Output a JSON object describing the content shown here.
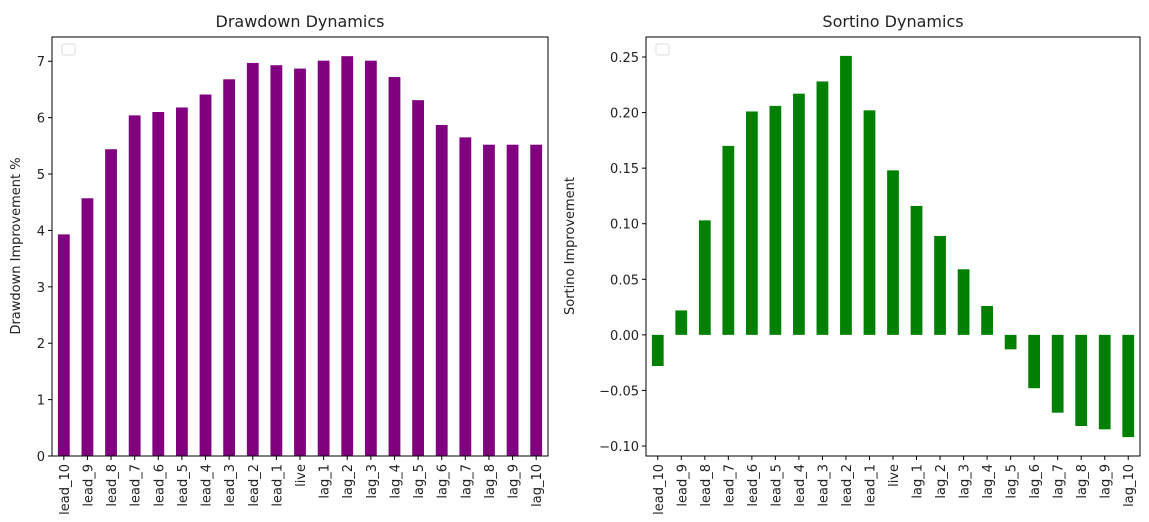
{
  "chart_data": [
    {
      "type": "bar",
      "title": "Drawdown Dynamics",
      "xlabel": "",
      "ylabel": "Drawdown Improvement %",
      "color": "#800080",
      "ylim": [
        0,
        7.43
      ],
      "yticks": [
        0,
        1,
        2,
        3,
        4,
        5,
        6,
        7
      ],
      "ytick_labels": [
        "0",
        "1",
        "2",
        "3",
        "4",
        "5",
        "6",
        "7"
      ],
      "legend": "top-left (empty)",
      "categories": [
        "lead_10",
        "lead_9",
        "lead_8",
        "lead_7",
        "lead_6",
        "lead_5",
        "lead_4",
        "lead_3",
        "lead_2",
        "lead_1",
        "live",
        "lag_1",
        "lag_2",
        "lag_3",
        "lag_4",
        "lag_5",
        "lag_6",
        "lag_7",
        "lag_8",
        "lag_9",
        "lag_10"
      ],
      "values": [
        3.93,
        4.57,
        5.44,
        6.04,
        6.1,
        6.18,
        6.41,
        6.68,
        6.97,
        6.93,
        6.87,
        7.01,
        7.09,
        7.01,
        6.72,
        6.31,
        5.87,
        5.65,
        5.52,
        5.52,
        5.52
      ]
    },
    {
      "type": "bar",
      "title": "Sortino Dynamics",
      "xlabel": "",
      "ylabel": "Sortino Improvement",
      "color": "#008000",
      "ylim": [
        -0.109,
        0.268
      ],
      "yticks": [
        -0.1,
        -0.05,
        0.0,
        0.05,
        0.1,
        0.15,
        0.2,
        0.25
      ],
      "ytick_labels": [
        "−0.10",
        "−0.05",
        "0.00",
        "0.05",
        "0.10",
        "0.15",
        "0.20",
        "0.25"
      ],
      "legend": "top-left (empty)",
      "categories": [
        "lead_10",
        "lead_9",
        "lead_8",
        "lead_7",
        "lead_6",
        "lead_5",
        "lead_4",
        "lead_3",
        "lead_2",
        "lead_1",
        "live",
        "lag_1",
        "lag_2",
        "lag_3",
        "lag_4",
        "lag_5",
        "lag_6",
        "lag_7",
        "lag_8",
        "lag_9",
        "lag_10"
      ],
      "values": [
        -0.028,
        0.022,
        0.103,
        0.17,
        0.201,
        0.206,
        0.217,
        0.228,
        0.251,
        0.202,
        0.148,
        0.116,
        0.089,
        0.059,
        0.026,
        -0.013,
        -0.048,
        -0.07,
        -0.082,
        -0.085,
        -0.092
      ]
    }
  ]
}
